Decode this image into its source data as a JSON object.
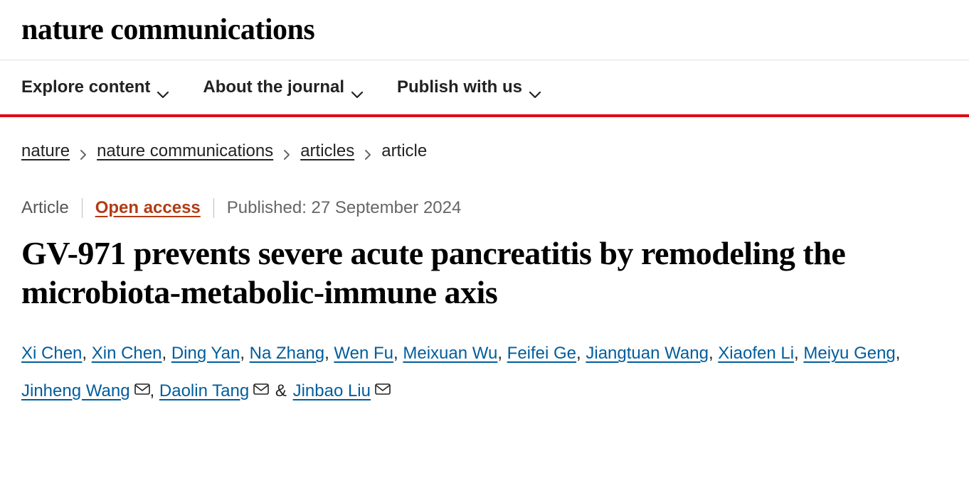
{
  "journal": {
    "name": "nature communications"
  },
  "nav": {
    "items": [
      {
        "label": "Explore content"
      },
      {
        "label": "About the journal"
      },
      {
        "label": "Publish with us"
      }
    ]
  },
  "breadcrumbs": {
    "items": [
      {
        "label": "nature",
        "link": true
      },
      {
        "label": "nature communications",
        "link": true
      },
      {
        "label": "articles",
        "link": true
      },
      {
        "label": "article",
        "link": false
      }
    ]
  },
  "meta": {
    "type": "Article",
    "access": "Open access",
    "published_label": "Published:",
    "published_date": "27 September 2024"
  },
  "article": {
    "title": "GV-971 prevents severe acute pancreatitis by remodeling the microbiota-metabolic-immune axis"
  },
  "authors": [
    {
      "name": "Xi Chen",
      "mail": false
    },
    {
      "name": "Xin Chen",
      "mail": false
    },
    {
      "name": "Ding Yan",
      "mail": false
    },
    {
      "name": "Na Zhang",
      "mail": false
    },
    {
      "name": "Wen Fu",
      "mail": false
    },
    {
      "name": "Meixuan Wu",
      "mail": false
    },
    {
      "name": "Feifei Ge",
      "mail": false
    },
    {
      "name": "Jiangtuan Wang",
      "mail": false
    },
    {
      "name": "Xiaofen Li",
      "mail": false
    },
    {
      "name": "Meiyu Geng",
      "mail": false
    },
    {
      "name": "Jinheng Wang",
      "mail": true
    },
    {
      "name": "Daolin Tang",
      "mail": true
    },
    {
      "name": "Jinbao Liu",
      "mail": true
    }
  ],
  "colors": {
    "accent_red": "#e30613",
    "link_blue": "#005d9c",
    "open_access": "#b33b14",
    "text": "#222222",
    "muted": "#666666",
    "divider": "#bdbdbd",
    "border": "#e4e4e4",
    "background": "#ffffff"
  },
  "typography": {
    "journal_title_font": "Georgia serif",
    "journal_title_size_pt": 32,
    "nav_size_pt": 18,
    "breadcrumb_size_pt": 18,
    "meta_size_pt": 18,
    "article_title_font": "Georgia serif",
    "article_title_size_pt": 34,
    "authors_size_pt": 18
  }
}
